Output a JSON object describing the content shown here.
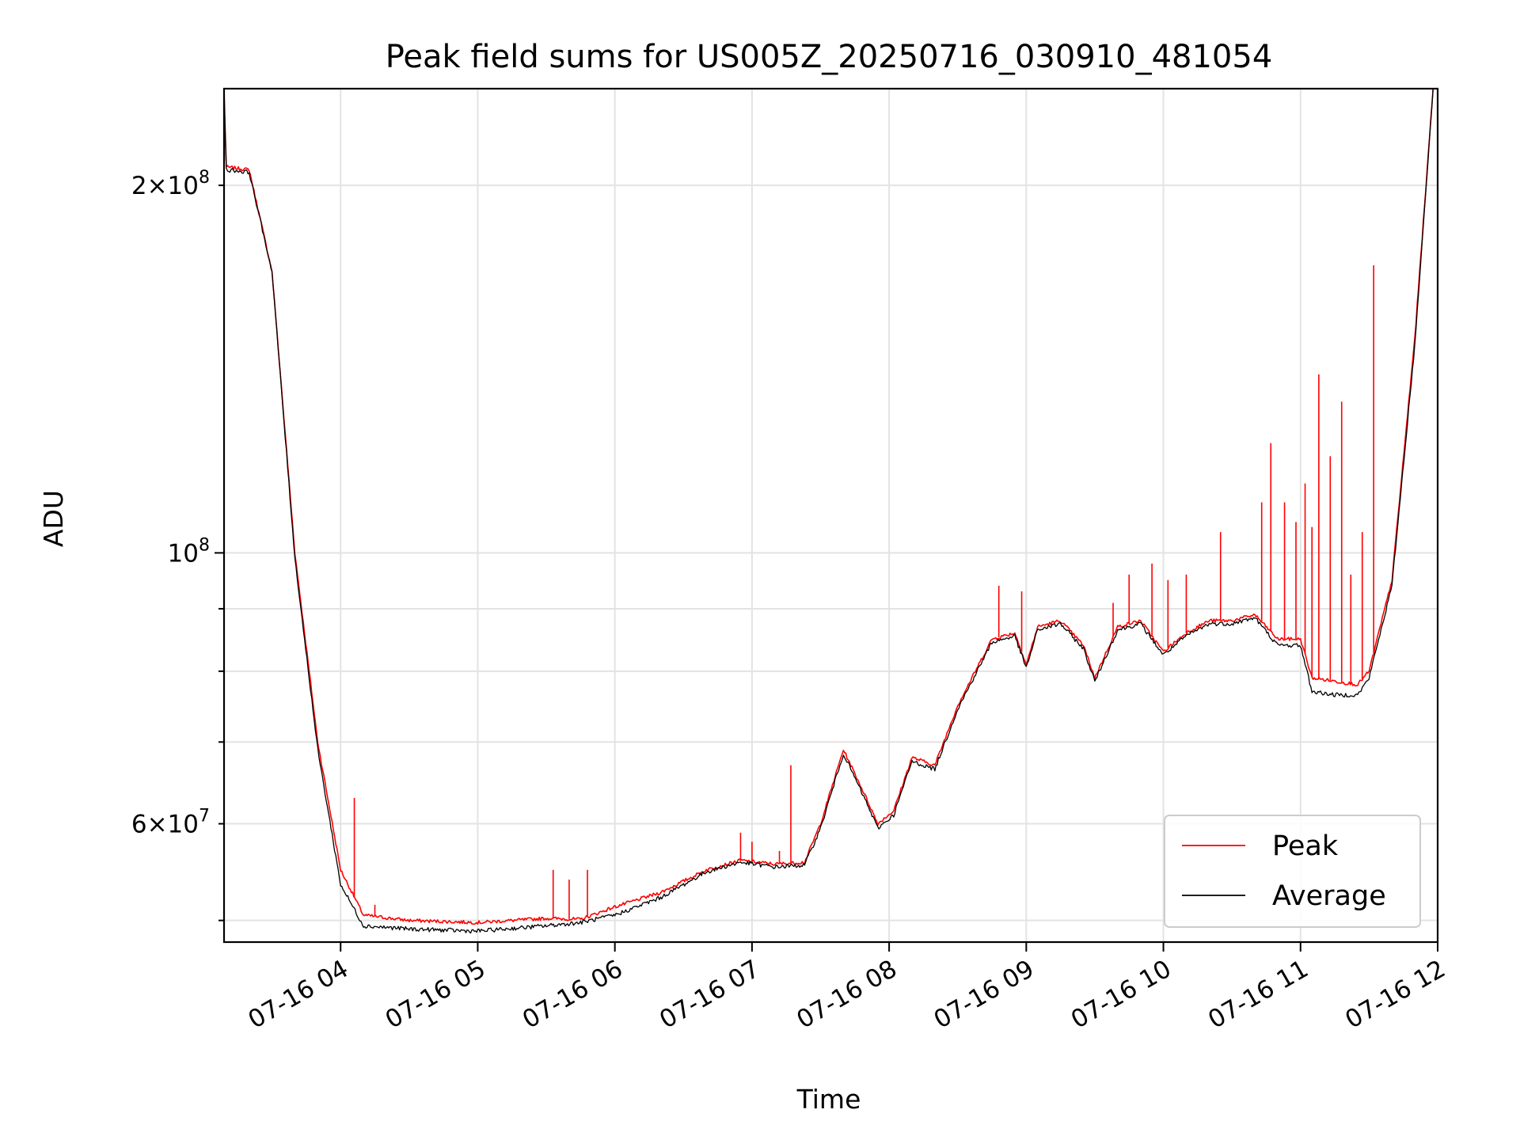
{
  "chart_data": {
    "type": "line",
    "title": "Peak field sums for US005Z_20250716_030910_481054",
    "xlabel": "Time",
    "ylabel": "ADU",
    "y_scale": "log",
    "ylim": [
      48000000,
      240000000
    ],
    "xlim": [
      "07-16 03:09",
      "07-16 12:00"
    ],
    "x_ticks": [
      "07-16 04",
      "07-16 05",
      "07-16 06",
      "07-16 07",
      "07-16 08",
      "07-16 09",
      "07-16 10",
      "07-16 11",
      "07-16 12"
    ],
    "y_ticks_major": [
      {
        "value": 100000000,
        "label_base": "10",
        "label_exp": "8"
      }
    ],
    "y_ticks_minor": [
      {
        "value": 50000000,
        "label": ""
      },
      {
        "value": 60000000,
        "label_mant": "6",
        "label_base": "10",
        "label_exp": "7"
      },
      {
        "value": 70000000,
        "label": ""
      },
      {
        "value": 80000000,
        "label": ""
      },
      {
        "value": 90000000,
        "label": ""
      },
      {
        "value": 200000000,
        "label_mant": "2",
        "label_base": "10",
        "label_exp": "8"
      }
    ],
    "grid": true,
    "legend_position": "bottom-right",
    "series": [
      {
        "name": "Peak",
        "color": "#ff0000",
        "points": [
          [
            "07-16 03:09",
            240000000
          ],
          [
            "07-16 03:10",
            207000000
          ],
          [
            "07-16 03:20",
            206000000
          ],
          [
            "07-16 03:30",
            170000000
          ],
          [
            "07-16 03:40",
            100000000
          ],
          [
            "07-16 03:50",
            70000000
          ],
          [
            "07-16 04:00",
            55000000
          ],
          [
            "07-16 04:10",
            50500000
          ],
          [
            "07-16 04:30",
            50000000
          ],
          [
            "07-16 05:00",
            49800000
          ],
          [
            "07-16 05:30",
            50200000
          ],
          [
            "07-16 05:45",
            50100000
          ],
          [
            "07-16 06:00",
            51300000
          ],
          [
            "07-16 06:20",
            52700000
          ],
          [
            "07-16 06:40",
            55000000
          ],
          [
            "07-16 06:55",
            56000000
          ],
          [
            "07-16 07:10",
            55600000
          ],
          [
            "07-16 07:23",
            55800000
          ],
          [
            "07-16 07:30",
            60000000
          ],
          [
            "07-16 07:40",
            69000000
          ],
          [
            "07-16 07:50",
            63000000
          ],
          [
            "07-16 07:55",
            60000000
          ],
          [
            "07-16 08:02",
            61500000
          ],
          [
            "07-16 08:10",
            68000000
          ],
          [
            "07-16 08:20",
            67000000
          ],
          [
            "07-16 08:30",
            75000000
          ],
          [
            "07-16 08:45",
            85000000
          ],
          [
            "07-16 08:55",
            86000000
          ],
          [
            "07-16 09:00",
            81000000
          ],
          [
            "07-16 09:05",
            87000000
          ],
          [
            "07-16 09:15",
            88000000
          ],
          [
            "07-16 09:25",
            84000000
          ],
          [
            "07-16 09:30",
            79000000
          ],
          [
            "07-16 09:40",
            87000000
          ],
          [
            "07-16 09:50",
            88000000
          ],
          [
            "07-16 10:00",
            83000000
          ],
          [
            "07-16 10:10",
            86000000
          ],
          [
            "07-16 10:20",
            88000000
          ],
          [
            "07-16 10:30",
            88000000
          ],
          [
            "07-16 10:40",
            89000000
          ],
          [
            "07-16 10:50",
            85000000
          ],
          [
            "07-16 11:00",
            85000000
          ],
          [
            "07-16 11:05",
            79000000
          ],
          [
            "07-16 11:15",
            78500000
          ],
          [
            "07-16 11:25",
            78000000
          ],
          [
            "07-16 11:30",
            80000000
          ],
          [
            "07-16 11:40",
            95000000
          ],
          [
            "07-16 11:50",
            150000000
          ],
          [
            "07-16 11:58",
            240000000
          ]
        ],
        "spikes": [
          [
            "07-16 03:55",
            62000000
          ],
          [
            "07-16 04:06",
            63000000
          ],
          [
            "07-16 04:15",
            51500000
          ],
          [
            "07-16 05:33",
            55000000
          ],
          [
            "07-16 05:40",
            54000000
          ],
          [
            "07-16 05:48",
            55000000
          ],
          [
            "07-16 06:55",
            59000000
          ],
          [
            "07-16 07:00",
            58000000
          ],
          [
            "07-16 07:12",
            57000000
          ],
          [
            "07-16 07:17",
            67000000
          ],
          [
            "07-16 08:48",
            94000000
          ],
          [
            "07-16 08:58",
            93000000
          ],
          [
            "07-16 09:38",
            91000000
          ],
          [
            "07-16 09:45",
            96000000
          ],
          [
            "07-16 09:55",
            98000000
          ],
          [
            "07-16 10:02",
            95000000
          ],
          [
            "07-16 10:10",
            96000000
          ],
          [
            "07-16 10:25",
            104000000
          ],
          [
            "07-16 10:43",
            110000000
          ],
          [
            "07-16 10:47",
            123000000
          ],
          [
            "07-16 10:53",
            110000000
          ],
          [
            "07-16 10:58",
            106000000
          ],
          [
            "07-16 11:02",
            114000000
          ],
          [
            "07-16 11:05",
            105000000
          ],
          [
            "07-16 11:08",
            140000000
          ],
          [
            "07-16 11:13",
            120000000
          ],
          [
            "07-16 11:18",
            133000000
          ],
          [
            "07-16 11:22",
            96000000
          ],
          [
            "07-16 11:27",
            104000000
          ],
          [
            "07-16 11:32",
            172000000
          ]
        ]
      },
      {
        "name": "Average",
        "color": "#000000",
        "points": [
          [
            "07-16 03:09",
            240000000
          ],
          [
            "07-16 03:10",
            206000000
          ],
          [
            "07-16 03:20",
            205000000
          ],
          [
            "07-16 03:30",
            170000000
          ],
          [
            "07-16 03:40",
            99000000
          ],
          [
            "07-16 03:50",
            69000000
          ],
          [
            "07-16 04:00",
            53500000
          ],
          [
            "07-16 04:10",
            49500000
          ],
          [
            "07-16 04:30",
            49200000
          ],
          [
            "07-16 05:00",
            49000000
          ],
          [
            "07-16 05:30",
            49500000
          ],
          [
            "07-16 05:45",
            49800000
          ],
          [
            "07-16 06:00",
            50500000
          ],
          [
            "07-16 06:20",
            52200000
          ],
          [
            "07-16 06:40",
            54800000
          ],
          [
            "07-16 06:55",
            55800000
          ],
          [
            "07-16 07:10",
            55300000
          ],
          [
            "07-16 07:23",
            55500000
          ],
          [
            "07-16 07:30",
            59500000
          ],
          [
            "07-16 07:40",
            68500000
          ],
          [
            "07-16 07:50",
            62500000
          ],
          [
            "07-16 07:55",
            59500000
          ],
          [
            "07-16 08:02",
            61000000
          ],
          [
            "07-16 08:10",
            67500000
          ],
          [
            "07-16 08:20",
            66500000
          ],
          [
            "07-16 08:30",
            74500000
          ],
          [
            "07-16 08:45",
            84500000
          ],
          [
            "07-16 08:55",
            85500000
          ],
          [
            "07-16 09:00",
            80500000
          ],
          [
            "07-16 09:05",
            86500000
          ],
          [
            "07-16 09:15",
            87500000
          ],
          [
            "07-16 09:25",
            83500000
          ],
          [
            "07-16 09:30",
            78500000
          ],
          [
            "07-16 09:40",
            86500000
          ],
          [
            "07-16 09:50",
            87500000
          ],
          [
            "07-16 10:00",
            82500000
          ],
          [
            "07-16 10:10",
            85500000
          ],
          [
            "07-16 10:20",
            87500000
          ],
          [
            "07-16 10:30",
            87500000
          ],
          [
            "07-16 10:40",
            88500000
          ],
          [
            "07-16 10:50",
            84000000
          ],
          [
            "07-16 11:00",
            84000000
          ],
          [
            "07-16 11:05",
            77000000
          ],
          [
            "07-16 11:15",
            76500000
          ],
          [
            "07-16 11:25",
            76500000
          ],
          [
            "07-16 11:30",
            79000000
          ],
          [
            "07-16 11:40",
            94000000
          ],
          [
            "07-16 11:50",
            148000000
          ],
          [
            "07-16 11:58",
            240000000
          ]
        ],
        "spikes": []
      }
    ]
  }
}
